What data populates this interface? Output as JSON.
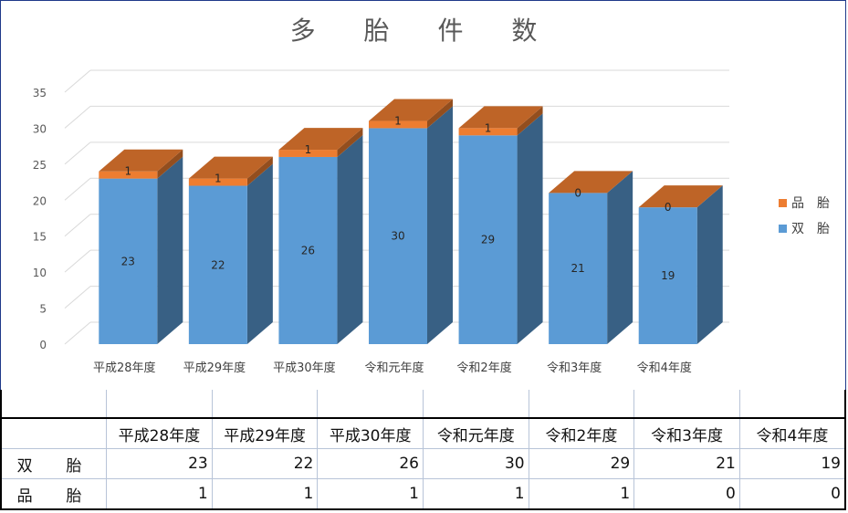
{
  "chart_data": {
    "type": "bar",
    "stacked": true,
    "three_d": true,
    "title": "多 胎 件 数",
    "categories": [
      "平成28年度",
      "平成29年度",
      "平成30年度",
      "令和元年度",
      "令和2年度",
      "令和3年度",
      "令和4年度"
    ],
    "series": [
      {
        "name": "双　胎",
        "values": [
          23,
          22,
          26,
          30,
          29,
          21,
          19
        ],
        "color": "#5b9bd5"
      },
      {
        "name": "品　胎",
        "values": [
          1,
          1,
          1,
          1,
          1,
          0,
          0
        ],
        "color": "#ed7d31"
      }
    ],
    "ylim": [
      0,
      35
    ],
    "yticks": [
      "0",
      "5",
      "10",
      "15",
      "20",
      "25",
      "30",
      "35"
    ],
    "grid": true,
    "legend_position": "right"
  },
  "table": {
    "headers": [
      "平成28年度",
      "平成29年度",
      "平成30年度",
      "令和元年度",
      "令和2年度",
      "令和3年度",
      "令和4年度"
    ],
    "rows": [
      {
        "label": "双　胎",
        "values": [
          "23",
          "22",
          "26",
          "30",
          "29",
          "21",
          "19"
        ]
      },
      {
        "label": "品　胎",
        "values": [
          "1",
          "1",
          "1",
          "1",
          "1",
          "0",
          "0"
        ]
      }
    ]
  }
}
